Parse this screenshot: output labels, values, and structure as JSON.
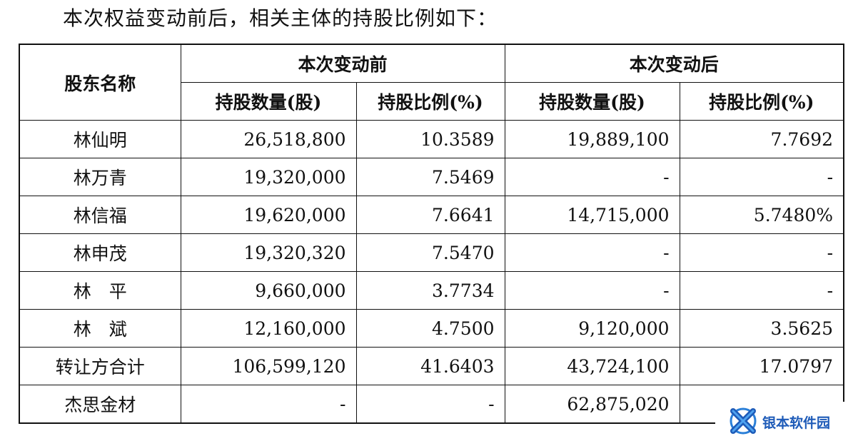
{
  "intro": "本次权益变动前后，相关主体的持股比例如下：",
  "headers": {
    "holder": "股东名称",
    "before": "本次变动前",
    "after": "本次变动后",
    "shares": "持股数量(股)",
    "ratio": "持股比例(%)"
  },
  "rows": [
    {
      "name": "林仙明",
      "before_shares": "26,518,800",
      "before_ratio": "10.3589",
      "after_shares": "19,889,100",
      "after_ratio": "7.7692"
    },
    {
      "name": "林万青",
      "before_shares": "19,320,000",
      "before_ratio": "7.5469",
      "after_shares": "-",
      "after_ratio": "-"
    },
    {
      "name": "林信福",
      "before_shares": "19,620,000",
      "before_ratio": "7.6641",
      "after_shares": "14,715,000",
      "after_ratio": "5.7480%"
    },
    {
      "name": "林申茂",
      "before_shares": "19,320,320",
      "before_ratio": "7.5470",
      "after_shares": "-",
      "after_ratio": "-"
    },
    {
      "name": "林　平",
      "before_shares": "9,660,000",
      "before_ratio": "3.7734",
      "after_shares": "-",
      "after_ratio": "-"
    },
    {
      "name": "林　斌",
      "before_shares": "12,160,000",
      "before_ratio": "4.7500",
      "after_shares": "9,120,000",
      "after_ratio": "3.5625"
    },
    {
      "name": "转让方合计",
      "before_shares": "106,599,120",
      "before_ratio": "41.6403",
      "after_shares": "43,724,100",
      "after_ratio": "17.0797",
      "bold": true
    },
    {
      "name": "杰思金材",
      "before_shares": "-",
      "before_ratio": "-",
      "after_shares": "62,875,020",
      "after_ratio": ""
    }
  ],
  "watermark": {
    "text": "银本软件园",
    "icon": "x-logo-icon",
    "color": "#1e5bb8"
  }
}
